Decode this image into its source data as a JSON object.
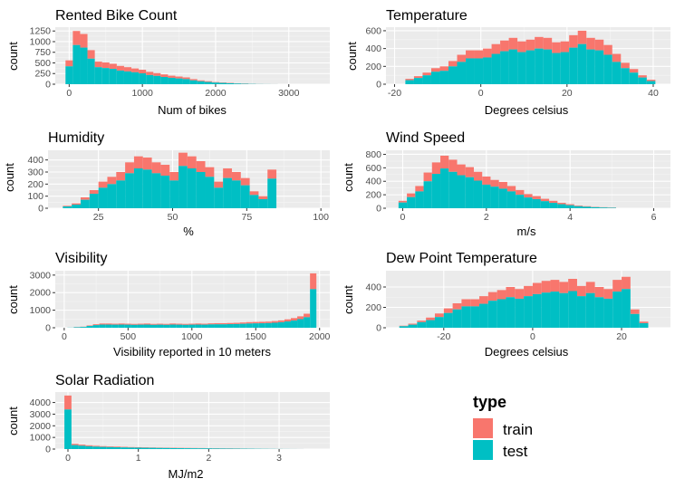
{
  "colors": {
    "train": "#F8766D",
    "test": "#00BFC4",
    "panel": "#EBEBEB",
    "grid_major": "#FFFFFF",
    "grid_minor": "#F5F5F5"
  },
  "legend": {
    "title": "type",
    "items": [
      "train",
      "test"
    ]
  },
  "chart_data": [
    {
      "type": "histogram",
      "title": "Rented Bike Count",
      "xlabel": "Num of bikes",
      "ylabel": "count",
      "xlim": [
        -190,
        3560
      ],
      "ylim": [
        0,
        1340
      ],
      "xticks": [
        0,
        1000,
        2000,
        3000
      ],
      "yticks": [
        0,
        250,
        500,
        750,
        1000,
        1250
      ],
      "bin_start": -50,
      "bin_width": 100,
      "total": [
        560,
        1250,
        1180,
        800,
        530,
        510,
        480,
        430,
        400,
        370,
        340,
        290,
        260,
        230,
        200,
        180,
        160,
        120,
        90,
        70,
        50,
        40,
        30,
        20,
        15,
        10,
        5,
        3,
        2
      ],
      "test": [
        420,
        920,
        860,
        600,
        400,
        380,
        360,
        320,
        300,
        280,
        255,
        215,
        195,
        170,
        150,
        135,
        120,
        90,
        68,
        52,
        38,
        30,
        22,
        15,
        10,
        6,
        3,
        2,
        1
      ]
    },
    {
      "type": "histogram",
      "title": "Temperature",
      "xlabel": "Degrees celsius",
      "ylabel": "count",
      "xlim": [
        -22,
        44
      ],
      "ylim": [
        0,
        640
      ],
      "xticks": [
        -20,
        0,
        20,
        40
      ],
      "yticks": [
        0,
        200,
        400,
        600
      ],
      "bin_start": -17.5,
      "bin_width": 2,
      "total": [
        60,
        90,
        130,
        180,
        200,
        260,
        330,
        380,
        380,
        400,
        450,
        490,
        520,
        480,
        500,
        530,
        520,
        470,
        480,
        550,
        600,
        520,
        500,
        440,
        340,
        240,
        170,
        100,
        50
      ],
      "test": [
        45,
        70,
        100,
        140,
        150,
        200,
        250,
        290,
        290,
        300,
        340,
        370,
        390,
        360,
        380,
        400,
        390,
        350,
        360,
        410,
        450,
        390,
        380,
        330,
        250,
        180,
        130,
        75,
        35
      ]
    },
    {
      "type": "histogram",
      "title": "Humidity",
      "xlabel": "%",
      "ylabel": "count",
      "xlim": [
        8,
        103
      ],
      "ylim": [
        0,
        480
      ],
      "xticks": [
        25,
        50,
        75,
        100
      ],
      "yticks": [
        0,
        100,
        200,
        300,
        400
      ],
      "bin_start": 13,
      "bin_width": 3,
      "total": [
        20,
        40,
        90,
        150,
        220,
        260,
        300,
        380,
        430,
        420,
        380,
        360,
        300,
        460,
        430,
        390,
        340,
        220,
        330,
        300,
        250,
        140,
        100,
        320
      ],
      "test": [
        15,
        30,
        70,
        120,
        170,
        200,
        230,
        290,
        330,
        320,
        290,
        270,
        230,
        350,
        330,
        300,
        260,
        170,
        250,
        230,
        190,
        110,
        75,
        245
      ]
    },
    {
      "type": "histogram",
      "title": "Wind Speed",
      "xlabel": "m/s",
      "ylabel": "count",
      "xlim": [
        -0.4,
        6.4
      ],
      "ylim": [
        0,
        860
      ],
      "xticks": [
        0,
        2,
        4,
        6
      ],
      "yticks": [
        0,
        200,
        400,
        600,
        800
      ],
      "bin_start": -0.1,
      "bin_width": 0.2,
      "total": [
        110,
        220,
        330,
        530,
        680,
        780,
        720,
        650,
        610,
        540,
        470,
        420,
        390,
        330,
        270,
        210,
        180,
        140,
        110,
        80,
        60,
        40,
        30,
        20,
        15,
        10
      ],
      "test": [
        85,
        165,
        250,
        400,
        510,
        590,
        540,
        490,
        460,
        410,
        350,
        320,
        290,
        250,
        200,
        160,
        135,
        105,
        80,
        60,
        45,
        30,
        22,
        15,
        10,
        7
      ]
    },
    {
      "type": "histogram",
      "title": "Visibility",
      "xlabel": "Visibility reported in 10 meters",
      "ylabel": "count",
      "xlim": [
        -70,
        2080
      ],
      "ylim": [
        0,
        3250
      ],
      "xticks": [
        0,
        500,
        1000,
        1500,
        2000
      ],
      "yticks": [
        0,
        1000,
        2000,
        3000
      ],
      "bin_start": 25,
      "bin_width": 50,
      "total": [
        10,
        40,
        60,
        130,
        200,
        240,
        240,
        230,
        240,
        230,
        220,
        230,
        240,
        220,
        230,
        220,
        240,
        230,
        220,
        230,
        240,
        230,
        250,
        260,
        260,
        270,
        280,
        300,
        320,
        330,
        340,
        350,
        380,
        420,
        480,
        550,
        650,
        800,
        3100
      ],
      "test": [
        8,
        30,
        45,
        100,
        150,
        180,
        180,
        175,
        180,
        175,
        165,
        175,
        180,
        165,
        175,
        165,
        180,
        175,
        165,
        175,
        180,
        175,
        190,
        195,
        195,
        205,
        210,
        225,
        240,
        250,
        255,
        265,
        285,
        315,
        360,
        410,
        490,
        600,
        2200
      ]
    },
    {
      "type": "histogram",
      "title": "Dew Point Temperature",
      "xlabel": "Degrees celsius",
      "ylabel": "count",
      "xlim": [
        -33,
        31
      ],
      "ylim": [
        0,
        560
      ],
      "xticks": [
        -20,
        0,
        20
      ],
      "yticks": [
        0,
        200,
        400
      ],
      "bin_start": -30,
      "bin_width": 2,
      "total": [
        20,
        40,
        70,
        100,
        140,
        190,
        240,
        280,
        280,
        310,
        350,
        370,
        400,
        380,
        410,
        440,
        460,
        470,
        450,
        480,
        410,
        450,
        400,
        380,
        470,
        500,
        180,
        60
      ],
      "test": [
        15,
        30,
        55,
        75,
        105,
        145,
        180,
        210,
        210,
        235,
        265,
        280,
        300,
        285,
        310,
        330,
        345,
        355,
        340,
        360,
        310,
        340,
        300,
        285,
        355,
        380,
        135,
        45
      ]
    },
    {
      "type": "histogram",
      "title": "Solar Radiation",
      "xlabel": "MJ/m2",
      "ylabel": "count",
      "xlim": [
        -0.18,
        3.72
      ],
      "ylim": [
        0,
        4900
      ],
      "xticks": [
        0,
        1,
        2,
        3
      ],
      "yticks": [
        0,
        1000,
        2000,
        3000,
        4000
      ],
      "bin_start": -0.05,
      "bin_width": 0.1,
      "total": [
        4600,
        450,
        380,
        320,
        280,
        250,
        230,
        210,
        190,
        170,
        160,
        150,
        140,
        130,
        120,
        110,
        100,
        95,
        90,
        85,
        80,
        70,
        60,
        55,
        50,
        45,
        40,
        30,
        25,
        20,
        15,
        10,
        8,
        5
      ],
      "test": [
        3400,
        340,
        285,
        240,
        210,
        185,
        170,
        155,
        140,
        125,
        120,
        110,
        105,
        95,
        90,
        80,
        75,
        70,
        65,
        60,
        58,
        50,
        45,
        40,
        36,
        32,
        28,
        22,
        18,
        14,
        10,
        7,
        5,
        3
      ]
    }
  ]
}
